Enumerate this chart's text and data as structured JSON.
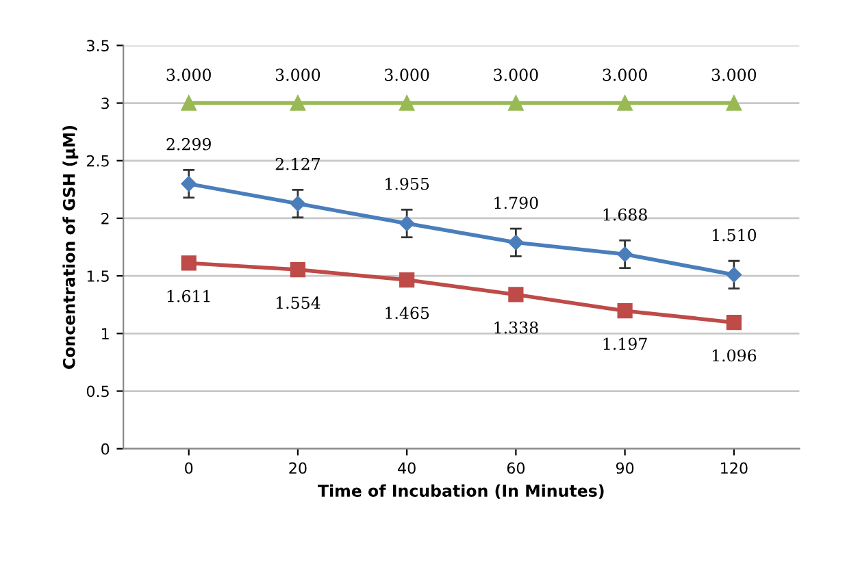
{
  "chart_data": {
    "type": "line",
    "xlabel": "Time of Incubation (In Minutes)",
    "ylabel": "Concentration of GSH (µM)",
    "categories": [
      "0",
      "20",
      "40",
      "60",
      "90",
      "120"
    ],
    "series": [
      {
        "color": "#4a7ebb",
        "marker": "diamond",
        "values": [
          2.299,
          2.127,
          1.955,
          1.79,
          1.688,
          1.51
        ],
        "errors": [
          0.12,
          0.12,
          0.12,
          0.12,
          0.12,
          0.12
        ],
        "value_labels": [
          "2.299",
          "2.127",
          "1.955",
          "1.790",
          "1.688",
          "1.510"
        ]
      },
      {
        "color": "#be4b48",
        "marker": "square",
        "values": [
          1.611,
          1.554,
          1.465,
          1.338,
          1.197,
          1.096
        ],
        "value_labels": [
          "1.611",
          "1.554",
          "1.465",
          "1.338",
          "1.197",
          "1.096"
        ]
      },
      {
        "color": "#98b954",
        "marker": "triangle",
        "values": [
          3.0,
          3.0,
          3.0,
          3.0,
          3.0,
          3.0
        ],
        "value_labels": [
          "3.000",
          "3.000",
          "3.000",
          "3.000",
          "3.000",
          "3.000"
        ]
      }
    ],
    "ylim": [
      0,
      3.5
    ],
    "yticks": [
      0,
      0.5,
      1,
      1.5,
      2,
      2.5,
      3,
      3.5
    ],
    "grid": "y",
    "legend": false,
    "line_style": "solid"
  }
}
